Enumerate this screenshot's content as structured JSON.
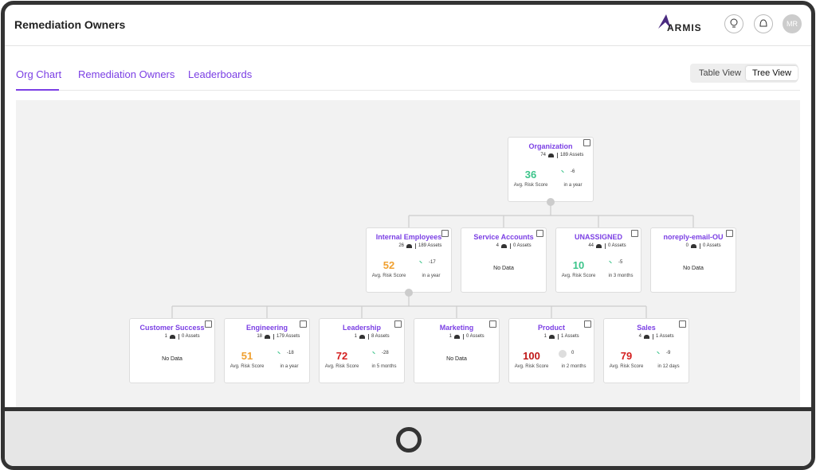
{
  "header": {
    "title": "Remediation Owners",
    "logo": "ARMIS",
    "avatar": "MR"
  },
  "tabs": [
    "Org Chart",
    "Remediation Owners",
    "Leaderboards"
  ],
  "active_tab": 0,
  "view_toggle": [
    "Table View",
    "Tree View"
  ],
  "active_view": 1,
  "tree": {
    "name": "Organization",
    "users": 74,
    "assets": "189 Assets",
    "score": 36,
    "score_color": "#3cc48a",
    "score_label": "Avg. Risk Score",
    "trend": "down",
    "change": -6,
    "period": "in a year",
    "children": [
      {
        "name": "Internal Employees",
        "users": 26,
        "assets": "189 Assets",
        "score": 52,
        "score_color": "#f0a030",
        "score_label": "Avg. Risk Score",
        "trend": "down",
        "change": -17,
        "period": "in a year",
        "children": [
          {
            "name": "Customer Success",
            "users": 1,
            "assets": "0 Assets",
            "status": "No Data"
          },
          {
            "name": "Engineering",
            "users": 18,
            "assets": "179 Assets",
            "score": 51,
            "score_color": "#f0a030",
            "score_label": "Avg. Risk Score",
            "trend": "down",
            "change": -18,
            "period": "in a year"
          },
          {
            "name": "Leadership",
            "users": 1,
            "assets": "8 Assets",
            "score": 72,
            "score_color": "#d42020",
            "score_label": "Avg. Risk Score",
            "trend": "down",
            "change": -28,
            "period": "in 5 months"
          },
          {
            "name": "Marketing",
            "users": 1,
            "assets": "0 Assets",
            "status": "No Data"
          },
          {
            "name": "Product",
            "users": 1,
            "assets": "1 Assets",
            "score": 100,
            "score_color": "#c01818",
            "score_label": "Avg. Risk Score",
            "trend": "flat",
            "change": 0,
            "period": "in 2 months"
          },
          {
            "name": "Sales",
            "users": 4,
            "assets": "1 Assets",
            "score": 79,
            "score_color": "#d42020",
            "score_label": "Avg. Risk Score",
            "trend": "down",
            "change": -9,
            "period": "in 12 days"
          }
        ]
      },
      {
        "name": "Service Accounts",
        "users": 4,
        "assets": "0 Assets",
        "status": "No Data"
      },
      {
        "name": "UNASSIGNED",
        "users": 44,
        "assets": "0 Assets",
        "score": 10,
        "score_color": "#3cc48a",
        "score_label": "Avg. Risk Score",
        "trend": "down",
        "change": -5,
        "period": "in 3 months"
      },
      {
        "name": "noreply-email-OU",
        "users": 0,
        "assets": "0 Assets",
        "status": "No Data"
      }
    ]
  }
}
